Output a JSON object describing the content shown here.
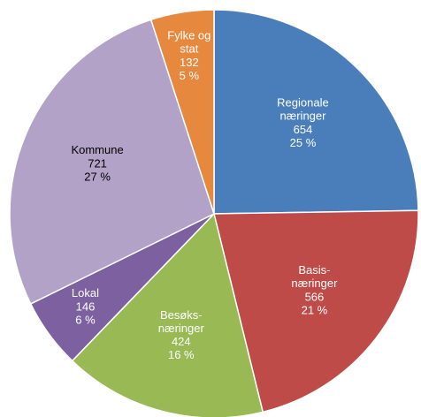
{
  "chart_data": {
    "type": "pie",
    "categories": [
      "Regionale\nnæringer",
      "Basis-\nnæringer",
      "Besøks-\nnæringer",
      "Lokal",
      "Kommune",
      "Fylke og\nstat"
    ],
    "values": [
      654,
      566,
      424,
      146,
      721,
      132
    ],
    "percent_labels": [
      "25 %",
      "21 %",
      "16 %",
      "6 %",
      "27 %",
      "5 %"
    ],
    "colors": [
      "#4a7ebb",
      "#be4b48",
      "#98b954",
      "#7d60a0",
      "#b3a2c7",
      "#e6893e"
    ],
    "label_colors": [
      "#ffffff",
      "#ffffff",
      "#ffffff",
      "#ffffff",
      "#000000",
      "#ffffff"
    ]
  }
}
